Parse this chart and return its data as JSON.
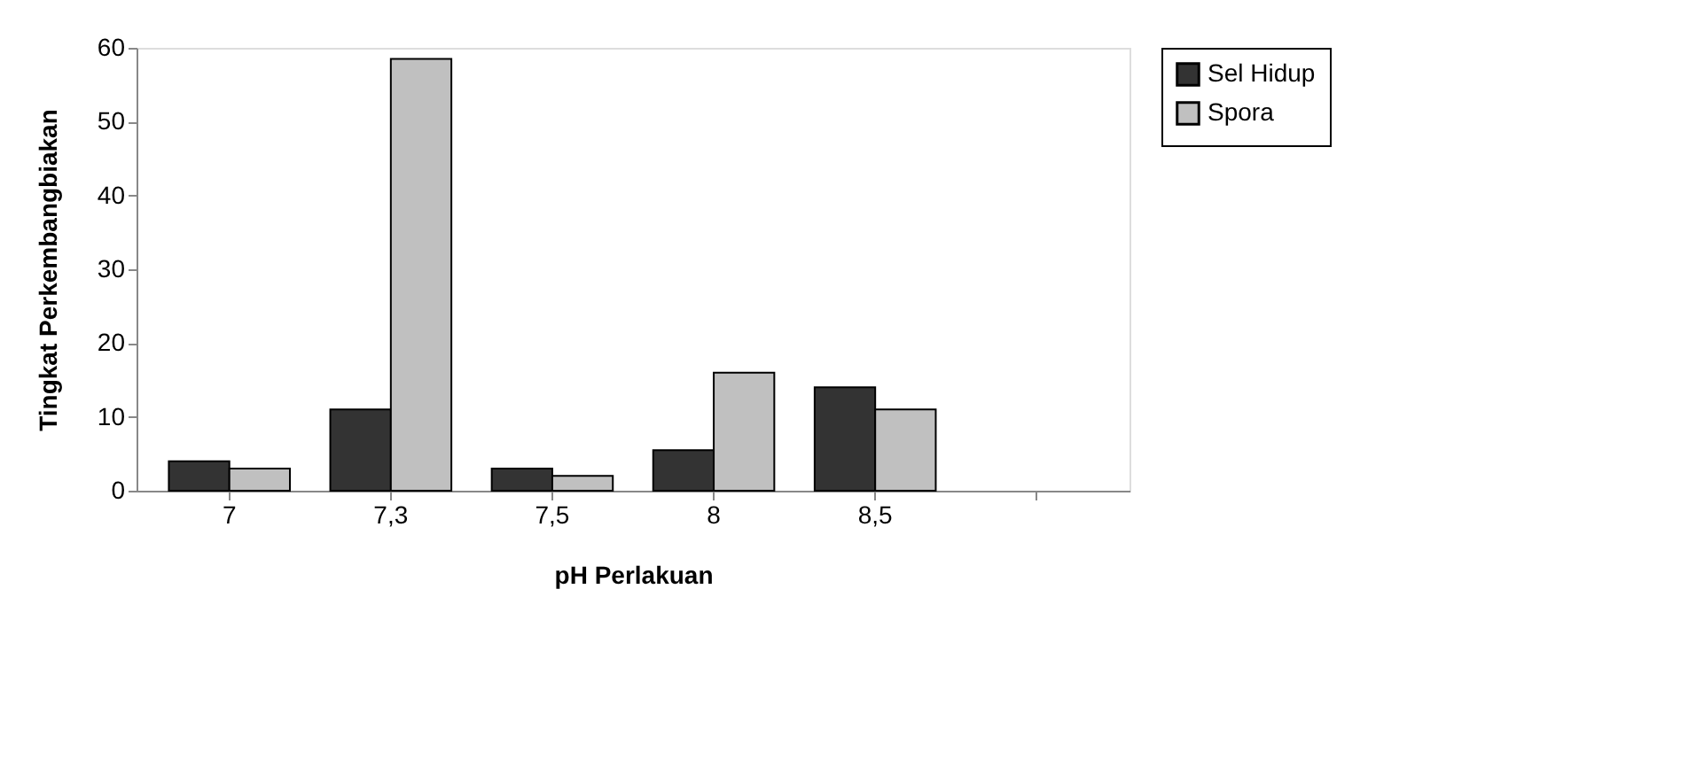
{
  "chart_data": {
    "type": "bar",
    "xlabel": "pH Perlakuan",
    "ylabel": "Tingkat Perkembangbiakan",
    "categories": [
      "7",
      "7,3",
      "7,5",
      "8",
      "8,5",
      null
    ],
    "series": [
      {
        "name": "Sel Hidup",
        "color": "#333333",
        "values": [
          4,
          11,
          3,
          5.5,
          14,
          null
        ]
      },
      {
        "name": "Spora",
        "color": "#c0c0c0",
        "values": [
          3,
          58.5,
          2,
          16,
          11,
          null
        ]
      }
    ],
    "ylim": [
      0,
      60
    ],
    "yticks": [
      0,
      10,
      20,
      30,
      40,
      50,
      60
    ],
    "grid": false,
    "legend": "right"
  }
}
